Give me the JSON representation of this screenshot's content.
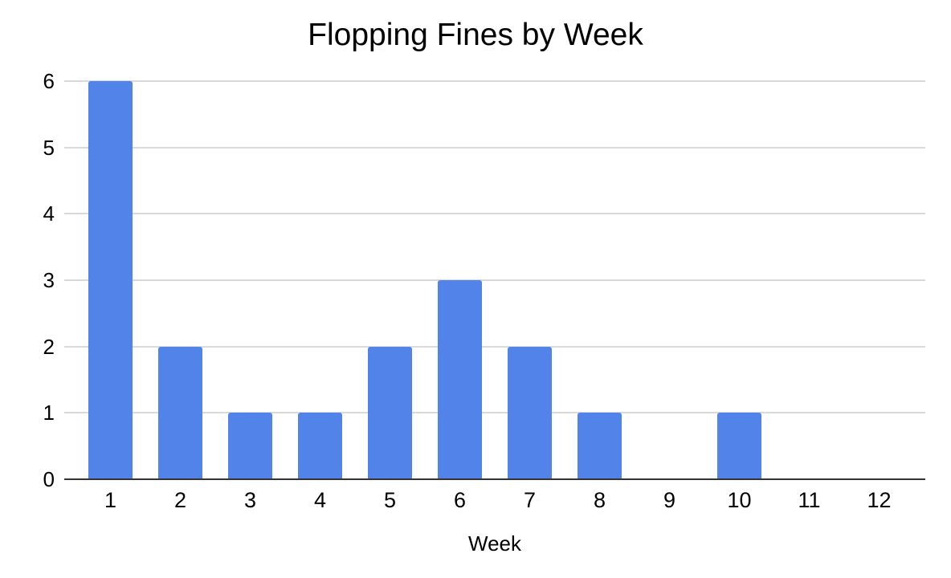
{
  "chart_data": {
    "type": "bar",
    "title": "Flopping Fines by Week",
    "xlabel": "Week",
    "ylabel": "",
    "categories": [
      "1",
      "2",
      "3",
      "4",
      "5",
      "6",
      "7",
      "8",
      "9",
      "10",
      "11",
      "12"
    ],
    "values": [
      6,
      2,
      1,
      1,
      2,
      3,
      2,
      1,
      0,
      1,
      0,
      0
    ],
    "ylim": [
      0,
      6
    ],
    "yticks": [
      0,
      1,
      2,
      3,
      4,
      5,
      6
    ],
    "grid": true,
    "legend": "none",
    "colors": {
      "bar": "#5283e8",
      "gridline": "#d9d9d9",
      "axis": "#333333",
      "text": "#000000",
      "background": "#ffffff"
    }
  }
}
